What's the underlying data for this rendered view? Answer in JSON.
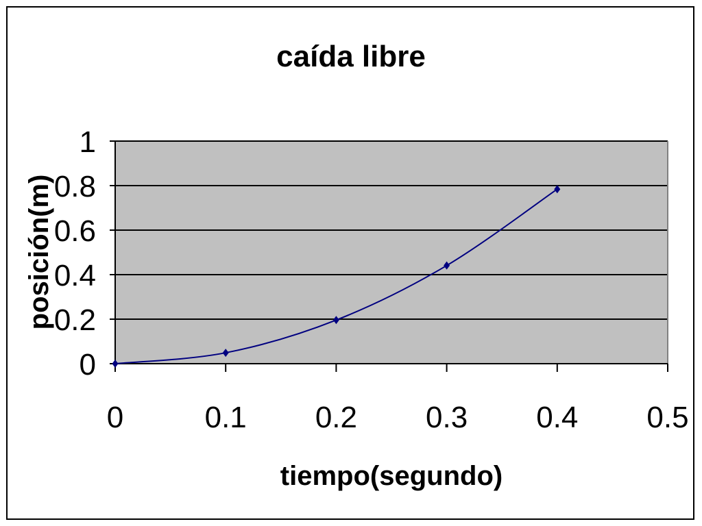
{
  "chart_data": {
    "type": "line",
    "title": "caída libre",
    "xlabel": "tiempo(segundo)",
    "ylabel": "posición(m)",
    "xlim": [
      0,
      0.5
    ],
    "ylim": [
      0,
      1
    ],
    "x_ticks": [
      "0",
      "0.1",
      "0.2",
      "0.3",
      "0.4",
      "0.5"
    ],
    "y_ticks": [
      "0",
      "0.2",
      "0.4",
      "0.6",
      "0.8",
      "1"
    ],
    "grid": true,
    "legend": "none",
    "plot_background": "#c0c0c0",
    "series": [
      {
        "color": "#000080",
        "marker": "diamond",
        "x": [
          0,
          0.1,
          0.2,
          0.3,
          0.4
        ],
        "y": [
          0,
          0.049,
          0.196,
          0.441,
          0.784
        ]
      }
    ]
  }
}
